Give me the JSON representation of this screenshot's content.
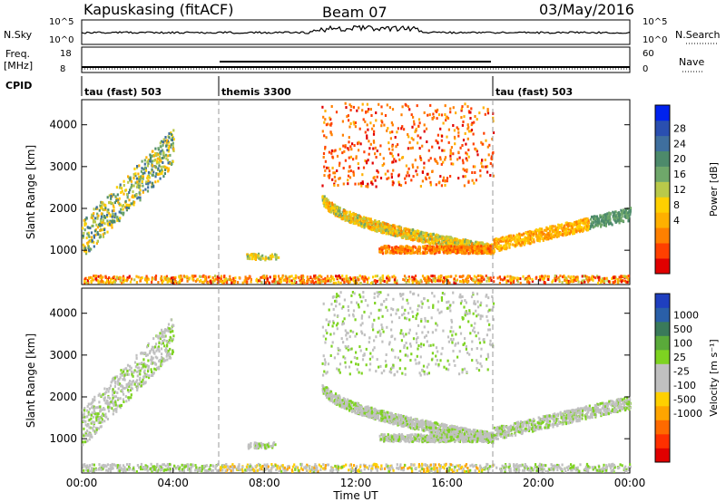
{
  "header": {
    "site": "Kapuskasing (fitACF)",
    "beam": "Beam 07",
    "date": "03/May/2016"
  },
  "labels": {
    "nsky": "N.Sky",
    "nsearch": "N.Search",
    "freq": "Freq.",
    "freq_unit": "[MHz]",
    "nave": "Nave",
    "cpid": "CPID",
    "nsky_ticks": [
      "10^5",
      "10^0"
    ],
    "nsearch_ticks": [
      "10^5",
      "10^0"
    ],
    "freq_ticks": [
      "18",
      "8"
    ],
    "nave_ticks": [
      "60",
      "0"
    ]
  },
  "cpid_segments": [
    {
      "start_hour": 0,
      "end_hour": 6,
      "label": "tau (fast) 503"
    },
    {
      "start_hour": 6,
      "end_hour": 18,
      "label": "themis 3300"
    },
    {
      "start_hour": 18,
      "end_hour": 24,
      "label": "tau (fast) 503"
    }
  ],
  "chart_data": [
    {
      "type": "heatmap",
      "name": "power",
      "xlabel": "Time UT",
      "ylabel": "Slant Range [km]",
      "x_ticks": [
        "00:00",
        "04:00",
        "08:00",
        "12:00",
        "16:00",
        "20:00",
        "00:00"
      ],
      "x_tick_hours": [
        0,
        4,
        8,
        12,
        16,
        20,
        24
      ],
      "y_ticks": [
        1000,
        2000,
        3000,
        4000
      ],
      "ylim": [
        180,
        4600
      ],
      "xlim_hours": [
        0,
        24
      ],
      "colorbar": {
        "label": "Power [dB]",
        "ticks": [
          "28",
          "24",
          "20",
          "16",
          "12",
          "8",
          "4"
        ],
        "levels": [
          "#0022ee",
          "#2a4fb0",
          "#3f6f9e",
          "#4d8a6b",
          "#6fa76a",
          "#b9c94a",
          "#ffd000",
          "#ffb000",
          "#ff8000",
          "#ff4000",
          "#e00000"
        ]
      }
    },
    {
      "type": "heatmap",
      "name": "velocity",
      "xlabel": "Time UT",
      "ylabel": "Slant Range [km]",
      "x_ticks": [
        "00:00",
        "04:00",
        "08:00",
        "12:00",
        "16:00",
        "20:00",
        "00:00"
      ],
      "x_tick_hours": [
        0,
        4,
        8,
        12,
        16,
        20,
        24
      ],
      "y_ticks": [
        1000,
        2000,
        3000,
        4000
      ],
      "ylim": [
        180,
        4600
      ],
      "xlim_hours": [
        0,
        24
      ],
      "colorbar": {
        "label": "Velocity [m s⁻¹]",
        "ticks": [
          "1000",
          "500",
          "100",
          "25",
          "-25",
          "-100",
          "-500",
          "-1000"
        ],
        "levels": [
          "#1f3fbf",
          "#2a5fa8",
          "#3a7a5a",
          "#5aaa3a",
          "#7ed321",
          "#c0c0c0",
          "#c0c0c0",
          "#ffd000",
          "#ffa500",
          "#ff6a00",
          "#ff3000",
          "#e00000"
        ]
      }
    }
  ],
  "vertical_markers_hours": [
    6,
    18
  ]
}
